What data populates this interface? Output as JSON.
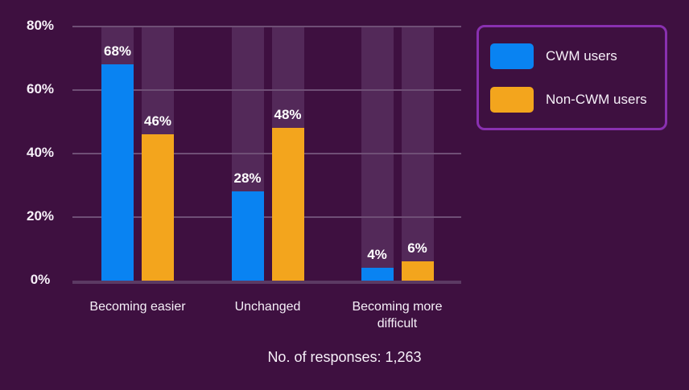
{
  "chart_data": {
    "type": "bar",
    "categories": [
      "Becoming easier",
      "Unchanged",
      "Becoming more difficult"
    ],
    "series": [
      {
        "name": "CWM users",
        "values": [
          68,
          28,
          4
        ],
        "color": "#0983f2"
      },
      {
        "name": "Non-CWM users",
        "values": [
          46,
          48,
          6
        ],
        "color": "#f3a51d"
      }
    ],
    "value_label_format": "{v}%",
    "yticks": [
      "0%",
      "20%",
      "40%",
      "60%",
      "80%"
    ],
    "ytick_values": [
      0,
      20,
      40,
      60,
      80
    ],
    "ylim": [
      0,
      80
    ],
    "grid": true,
    "legend_position": "top-right",
    "note": "No. of responses: 1,263"
  },
  "colors": {
    "background": "#3e1040",
    "bar_track": "#532959",
    "gridline": "#6f4f76",
    "baseline": "#5b3a63",
    "legend_border": "#8930b0",
    "text": "#f6f0f8",
    "value_label": "#ffffff",
    "cwm_blue": "#0983f2",
    "non_cwm_orange": "#f3a51d"
  }
}
